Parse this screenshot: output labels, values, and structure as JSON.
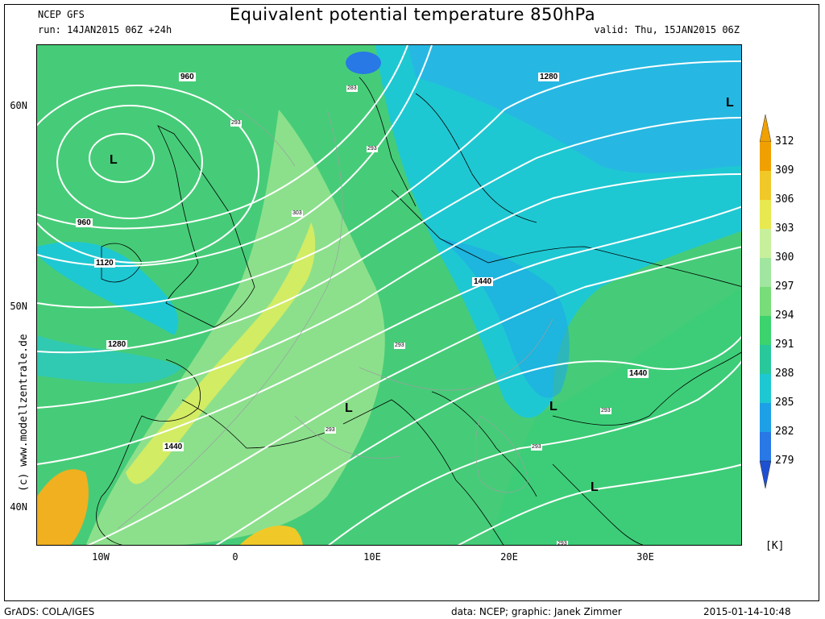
{
  "header": {
    "title": "Equivalent potential temperature 850hPa",
    "model": "NCEP GFS",
    "run": "run: 14JAN2015 06Z +24h",
    "valid": "valid: Thu, 15JAN2015 06Z"
  },
  "axes": {
    "lat_labels": [
      "60N",
      "50N",
      "40N"
    ],
    "lon_labels": [
      "10W",
      "0",
      "10E",
      "20E",
      "30E"
    ]
  },
  "colorbar": {
    "unit": "[K]",
    "levels": [
      "312",
      "309",
      "306",
      "303",
      "300",
      "297",
      "294",
      "291",
      "288",
      "285",
      "282",
      "279"
    ],
    "colors": [
      "#f0a000",
      "#f0c828",
      "#e8e850",
      "#c8f09c",
      "#a0e6a0",
      "#78dc78",
      "#3cd26e",
      "#28c89a",
      "#1ec8d2",
      "#1ea0e6",
      "#2878e6",
      "#1e50d2"
    ]
  },
  "pressure_systems": [
    {
      "id": "low-britain",
      "label": "L"
    },
    {
      "id": "low-ne",
      "label": "L"
    },
    {
      "id": "low-alps",
      "label": "L"
    },
    {
      "id": "low-hungary",
      "label": "L"
    },
    {
      "id": "low-balkans",
      "label": "L"
    }
  ],
  "geopotential_labels": [
    "960",
    "960",
    "1120",
    "1280",
    "1280",
    "1440",
    "1440",
    "1440"
  ],
  "theta_e_labels": [
    "283",
    "293",
    "293",
    "303",
    "293",
    "293",
    "293",
    "293",
    "293"
  ],
  "credit": "(c) www.modellzentrale.de",
  "footer": {
    "left": "GrADS: COLA/IGES",
    "center": "data: NCEP; graphic: Janek Zimmer",
    "right": "2015-01-14-10:48"
  }
}
